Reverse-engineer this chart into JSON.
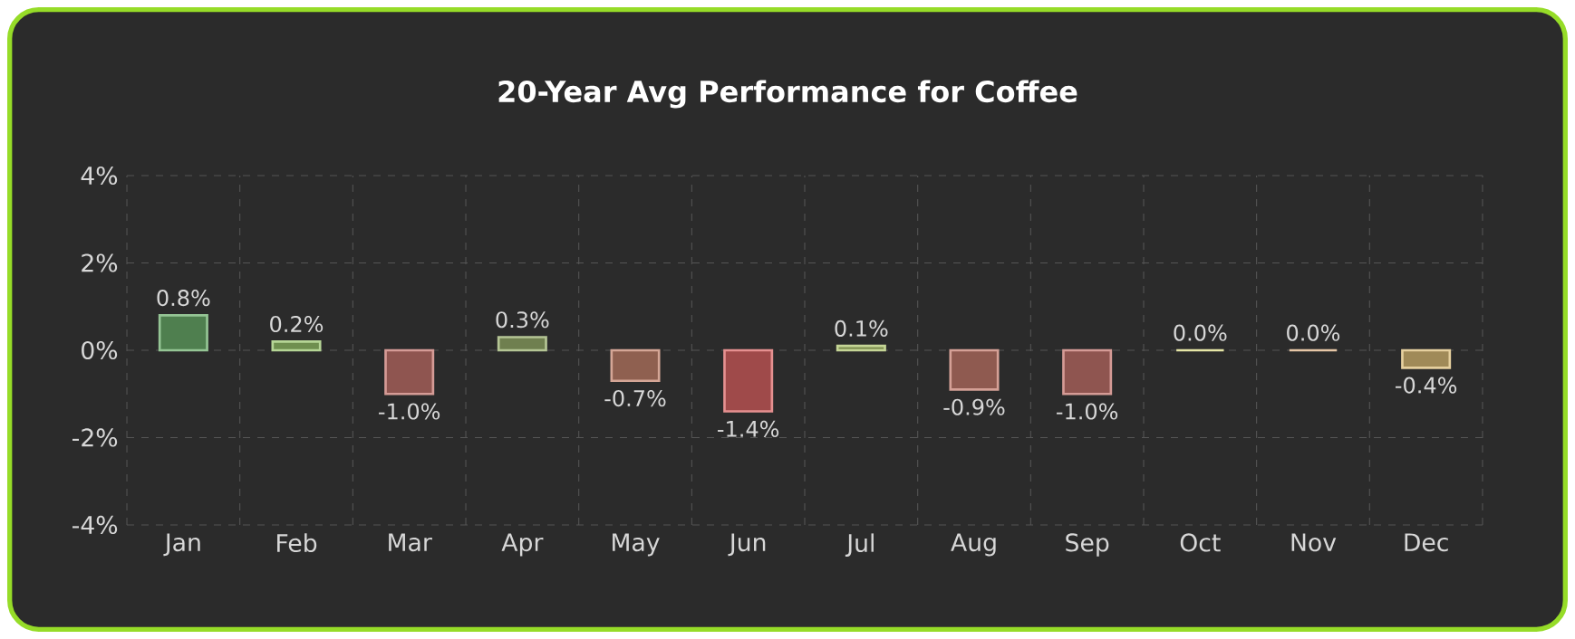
{
  "chart_data": {
    "type": "bar",
    "title": "20-Year Avg Performance for Coffee",
    "categories": [
      "Jan",
      "Feb",
      "Mar",
      "Apr",
      "May",
      "Jun",
      "Jul",
      "Aug",
      "Sep",
      "Oct",
      "Nov",
      "Dec"
    ],
    "values": [
      0.8,
      0.2,
      -1.0,
      0.3,
      -0.7,
      -1.4,
      0.1,
      -0.9,
      -1.0,
      0.0,
      0.0,
      -0.4
    ],
    "value_labels": [
      "0.8%",
      "0.2%",
      "-1.0%",
      "0.3%",
      "-0.7%",
      "-1.4%",
      "0.1%",
      "-0.9%",
      "-1.0%",
      "0.0%",
      "0.0%",
      "-0.4%"
    ],
    "colors": [
      "#4f7f4f",
      "#6f8f4f",
      "#8f5550",
      "#6f7f4f",
      "#8f6050",
      "#9f4a4a",
      "#7f8f50",
      "#8f5a50",
      "#8f5550",
      "#a0a060",
      "#a08060",
      "#a08a58"
    ],
    "ylim": [
      -4,
      4
    ],
    "yticks": [
      {
        "value": -4,
        "label": "-4%"
      },
      {
        "value": -2,
        "label": "-2%"
      },
      {
        "value": 0,
        "label": "0%"
      },
      {
        "value": 2,
        "label": "2%"
      },
      {
        "value": 4,
        "label": "4%"
      }
    ],
    "grid": true
  }
}
